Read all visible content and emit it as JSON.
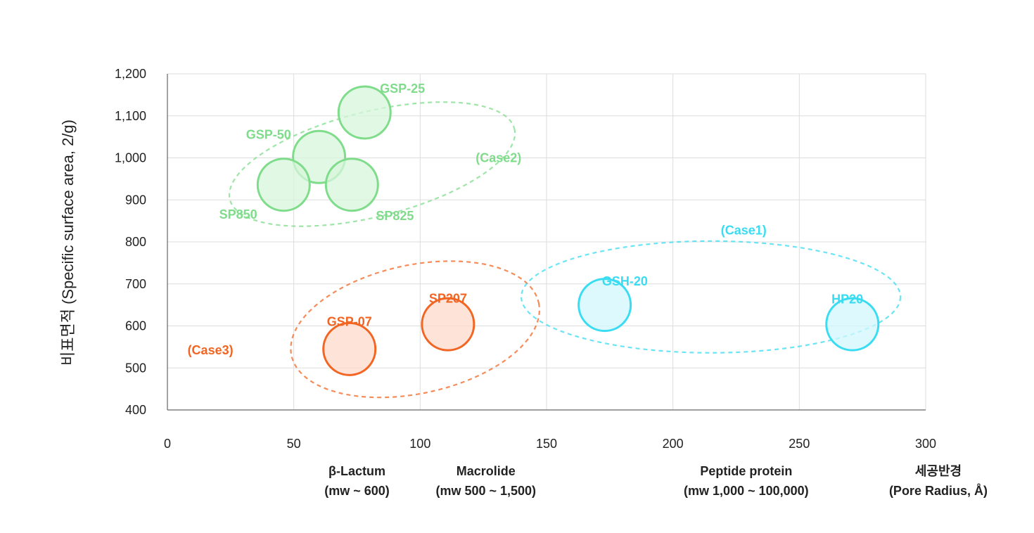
{
  "chart_data": {
    "type": "scatter",
    "title": "",
    "ylabel": "비표면적 (Specific surface area, 2/g)",
    "xlabel": "",
    "xlim": [
      0,
      300
    ],
    "ylim": [
      400,
      1200
    ],
    "x_ticks": [
      0,
      50,
      100,
      150,
      200,
      250,
      300
    ],
    "x_tick_labels": [
      "0",
      "50",
      "100",
      "150",
      "200",
      "250",
      "300"
    ],
    "y_ticks": [
      400,
      500,
      600,
      700,
      800,
      900,
      1000,
      1100,
      1200
    ],
    "y_tick_labels": [
      "400",
      "500",
      "600",
      "700",
      "800",
      "900",
      "1,000",
      "1,100",
      "1,200"
    ],
    "grid": true,
    "x_categories": [
      {
        "x": 75,
        "line1": "β-Lactum",
        "line2": "(mw ~ 600)"
      },
      {
        "x": 126,
        "line1": "Macrolide",
        "line2": "(mw 500 ~ 1,500)"
      },
      {
        "x": 229,
        "line1": "Peptide protein",
        "line2": "(mw 1,000 ~ 100,000)"
      },
      {
        "x": 305,
        "line1": "세공반경",
        "line2": "(Pore Radius, Å)"
      }
    ],
    "groups": [
      {
        "name": "(Case2)",
        "color": "#7EDC8A",
        "fill": "#D7F5DB",
        "ellipse": {
          "cx": 81,
          "cy": 985,
          "rx": 58,
          "ry": 125
        },
        "label_at": {
          "x": 131,
          "y": 1000
        },
        "points": [
          {
            "name": "GSP-25",
            "x": 78,
            "y": 1108,
            "label_x": 93,
            "label_y": 1165
          },
          {
            "name": "GSP-50",
            "x": 60,
            "y": 1002,
            "label_x": 40,
            "label_y": 1055
          },
          {
            "name": "SP850",
            "x": 46,
            "y": 936,
            "label_x": 28,
            "label_y": 865
          },
          {
            "name": "SP825",
            "x": 73,
            "y": 936,
            "label_x": 90,
            "label_y": 862
          }
        ]
      },
      {
        "name": "(Case3)",
        "color": "#F26522",
        "fill": "#FDD9CC",
        "ellipse": {
          "cx": 98,
          "cy": 592,
          "rx": 50,
          "ry": 153
        },
        "label_at": {
          "x": 17,
          "y": 542
        },
        "points": [
          {
            "name": "GSP-07",
            "x": 72,
            "y": 545,
            "label_x": 72,
            "label_y": 610
          },
          {
            "name": "SP207",
            "x": 111,
            "y": 604,
            "label_x": 111,
            "label_y": 665
          }
        ]
      },
      {
        "name": "(Case1)",
        "color": "#3ADCF2",
        "fill": "#D2F7FC",
        "ellipse": {
          "cx": 215,
          "cy": 669,
          "rx": 75,
          "ry": 133
        },
        "label_at": {
          "x": 228,
          "y": 828
        },
        "points": [
          {
            "name": "GSH-20",
            "x": 173,
            "y": 650,
            "label_x": 181,
            "label_y": 706
          },
          {
            "name": "HP20",
            "x": 271,
            "y": 604,
            "label_x": 269,
            "label_y": 664
          }
        ]
      }
    ]
  }
}
